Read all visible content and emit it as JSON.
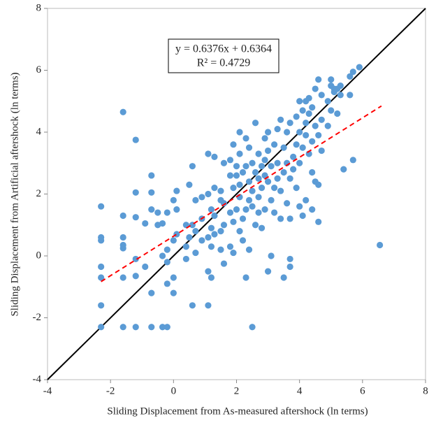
{
  "chart_data": {
    "type": "scatter",
    "x_label": "Sliding Displacement from As-measured aftershock (ln terms)",
    "y_label": "Sliding Displacement from Artificial aftershock  (ln terms)",
    "equation": "y = 0.6376x + 0.6364",
    "r_squared": "R² = 0.4729",
    "xlim": [
      -4,
      8
    ],
    "ylim": [
      -4,
      8
    ],
    "xticks": [
      -4,
      -2,
      0,
      2,
      4,
      6,
      8
    ],
    "yticks": [
      -4,
      -2,
      0,
      2,
      4,
      6,
      8
    ],
    "color": "#5b9bd5",
    "x": [
      -2.3,
      -2.3,
      -2.3,
      -2.3,
      -2.3,
      -2.3,
      -2.3,
      -1.6,
      -1.6,
      -1.6,
      -1.6,
      -1.6,
      -1.6,
      -1.6,
      -1.2,
      -1.2,
      -1.2,
      -1.2,
      -1.2,
      -1.2,
      -0.9,
      -0.9,
      -0.7,
      -0.7,
      -0.7,
      -0.7,
      -0.7,
      -0.5,
      -0.5,
      -0.35,
      -0.35,
      -0.35,
      -0.2,
      -0.2,
      -0.2,
      -0.2,
      -0.2,
      0,
      0,
      0,
      0,
      0.1,
      0.1,
      0.1,
      0.4,
      0.4,
      0.4,
      0.5,
      0.5,
      0.6,
      0.6,
      0.6,
      0.7,
      0.7,
      0.7,
      0.9,
      0.9,
      0.9,
      1.1,
      1.1,
      1.1,
      1.1,
      1.1,
      1.2,
      1.2,
      1.2,
      1.2,
      1.3,
      1.3,
      1.3,
      1.3,
      1.5,
      1.5,
      1.5,
      1.5,
      1.6,
      1.6,
      1.6,
      1.6,
      1.8,
      1.8,
      1.8,
      1.8,
      1.9,
      1.9,
      1.9,
      1.9,
      2.0,
      2.0,
      2.0,
      2.1,
      2.1,
      2.1,
      2.1,
      2.1,
      2.2,
      2.2,
      2.2,
      2.3,
      2.3,
      2.3,
      2.3,
      2.4,
      2.4,
      2.4,
      2.4,
      2.5,
      2.5,
      2.5,
      2.5,
      2.6,
      2.6,
      2.6,
      2.7,
      2.7,
      2.7,
      2.7,
      2.8,
      2.8,
      2.8,
      2.9,
      2.9,
      2.9,
      2.9,
      3.0,
      3.0,
      3.0,
      3.0,
      3.1,
      3.1,
      3.1,
      3.2,
      3.2,
      3.2,
      3.3,
      3.3,
      3.3,
      3.4,
      3.4,
      3.4,
      3.5,
      3.5,
      3.5,
      3.6,
      3.6,
      3.6,
      3.7,
      3.7,
      3.7,
      3.7,
      3.7,
      3.8,
      3.8,
      3.9,
      3.9,
      3.9,
      4.0,
      4.0,
      4.0,
      4.0,
      4.1,
      4.1,
      4.1,
      4.2,
      4.2,
      4.2,
      4.2,
      4.3,
      4.3,
      4.3,
      4.4,
      4.4,
      4.4,
      4.4,
      4.5,
      4.5,
      4.5,
      4.6,
      4.6,
      4.6,
      4.6,
      4.7,
      4.7,
      4.7,
      4.9,
      4.9,
      5.0,
      5.0,
      5.0,
      5.1,
      5.1,
      5.2,
      5.2,
      5.3,
      5.3,
      5.4,
      5.6,
      5.6,
      5.7,
      5.7,
      5.9,
      6.55
    ],
    "values": [
      1.6,
      0.6,
      0.5,
      -0.35,
      -0.7,
      -1.6,
      -2.3,
      4.65,
      1.3,
      0.6,
      0.35,
      0.25,
      -0.7,
      -2.3,
      3.75,
      2.05,
      1.25,
      -0.1,
      -0.65,
      -2.3,
      1.05,
      -0.35,
      2.6,
      2.05,
      1.5,
      -1.2,
      -2.3,
      1.4,
      1.0,
      1.05,
      -2.3,
      0,
      -2.3,
      1.4,
      0.2,
      -0.2,
      -0.9,
      1.8,
      -0.7,
      -1.2,
      0.5,
      2.1,
      1.5,
      0.7,
      1.0,
      0.3,
      -0.1,
      2.3,
      0.6,
      2.9,
      1.0,
      -1.6,
      1.8,
      0.1,
      0.8,
      1.2,
      1.9,
      0.5,
      3.3,
      2.0,
      -0.5,
      -1.6,
      0.6,
      1.5,
      0.9,
      -0.7,
      0.3,
      3.2,
      2.2,
      1.3,
      0.7,
      2.1,
      1.8,
      0.8,
      0.2,
      3.0,
      1.7,
      1.0,
      -0.25,
      3.1,
      2.6,
      1.4,
      0.3,
      3.6,
      2.2,
      1.1,
      0.1,
      2.9,
      1.5,
      2.6,
      4.0,
      3.3,
      2.3,
      0.8,
      1.9,
      2.7,
      1.2,
      0.5,
      3.8,
      2.9,
      1.5,
      -0.7,
      3.5,
      2.4,
      1.8,
      0.2,
      3.0,
      2.1,
      1.6,
      -2.3,
      4.3,
      2.7,
      1.0,
      3.3,
      2.5,
      1.9,
      1.4,
      2.9,
      2.2,
      0.9,
      3.8,
      3.1,
      2.6,
      1.5,
      4.0,
      3.4,
      2.4,
      -0.5,
      2.9,
      1.8,
      0,
      3.6,
      2.2,
      1.4,
      4.1,
      3.0,
      2.5,
      4.4,
      2.1,
      1.2,
      3.5,
      2.7,
      -0.7,
      4.0,
      3.0,
      1.7,
      4.3,
      2.5,
      1.2,
      -0.1,
      -0.35,
      3.2,
      2.8,
      4.5,
      3.6,
      2.2,
      5.0,
      4.0,
      3.0,
      1.6,
      4.7,
      3.5,
      1.3,
      5.0,
      4.3,
      3.9,
      1.8,
      5.1,
      4.6,
      3.3,
      4.8,
      3.7,
      2.7,
      1.5,
      5.4,
      4.2,
      2.4,
      5.7,
      3.9,
      2.3,
      1.1,
      5.2,
      4.4,
      3.4,
      5.0,
      4.2,
      5.7,
      5.5,
      4.7,
      5.3,
      5.4,
      5.4,
      4.6,
      5.5,
      5.2,
      2.8,
      5.8,
      5.2,
      3.1,
      5.95,
      6.1,
      0.35
    ],
    "trendline": {
      "slope": 0.6376,
      "intercept": 0.6364,
      "x": [
        -2.3,
        6.6
      ],
      "color": "#ff0000"
    },
    "reference_line": {
      "x": [
        -4,
        8
      ],
      "y": [
        -4,
        8
      ],
      "color": "#000000"
    }
  }
}
